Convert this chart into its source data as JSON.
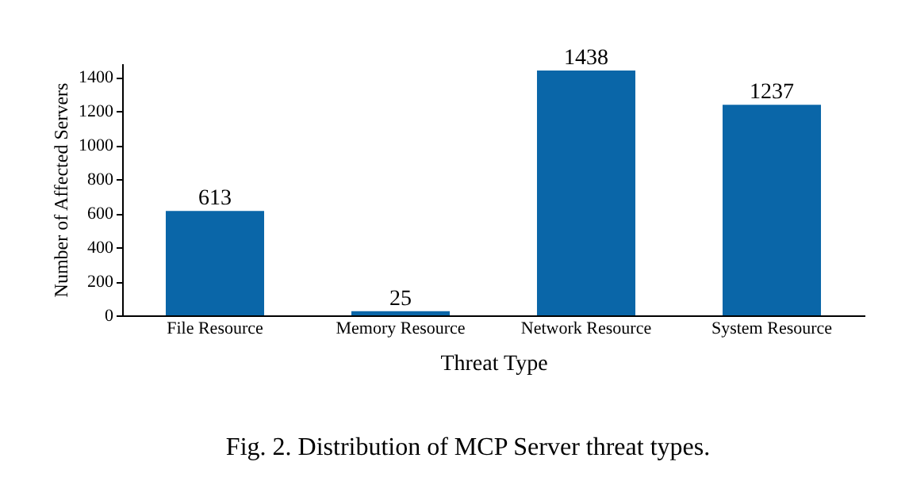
{
  "chart_data": {
    "type": "bar",
    "categories": [
      "File Resource",
      "Memory Resource",
      "Network Resource",
      "System Resource"
    ],
    "values": [
      613,
      25,
      1438,
      1237
    ],
    "color": "#0a66a8",
    "data_labels": true,
    "xlabel": "Threat Type",
    "ylabel": "Number of Affected Servers",
    "ylim": [
      0,
      1480
    ],
    "yticks": [
      0,
      200,
      400,
      600,
      800,
      1000,
      1200,
      1400
    ],
    "grid": false,
    "annotations": [
      "Fig. 2.  Distribution of MCP Server threat types."
    ]
  }
}
